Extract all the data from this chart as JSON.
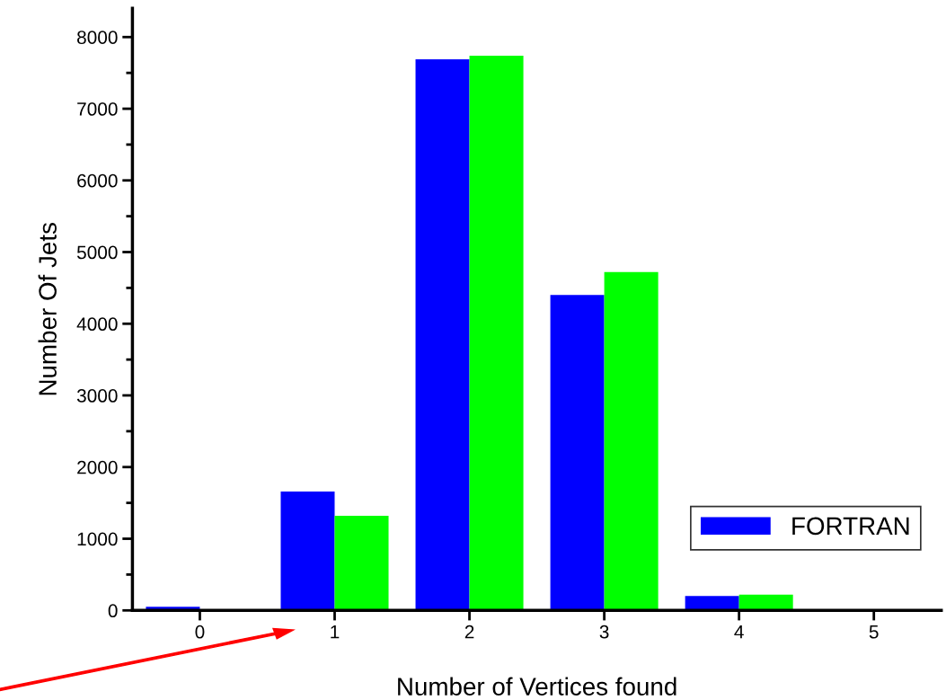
{
  "chart_data": {
    "type": "bar",
    "xlabel": "Number of Vertices found",
    "ylabel": "Number Of Jets",
    "categories": [
      "0",
      "1",
      "2",
      "3",
      "4",
      "5"
    ],
    "series": [
      {
        "name": "FORTRAN",
        "color": "#0000ff",
        "values": [
          50,
          1660,
          7690,
          4400,
          200,
          0
        ]
      },
      {
        "color": "#00ff00",
        "values": [
          0,
          1320,
          7740,
          4720,
          220,
          0
        ]
      }
    ],
    "ylim": [
      0,
      8400
    ],
    "yticks": [
      0,
      1000,
      2000,
      3000,
      4000,
      5000,
      6000,
      7000,
      8000
    ],
    "grid": false,
    "legend": "right"
  }
}
